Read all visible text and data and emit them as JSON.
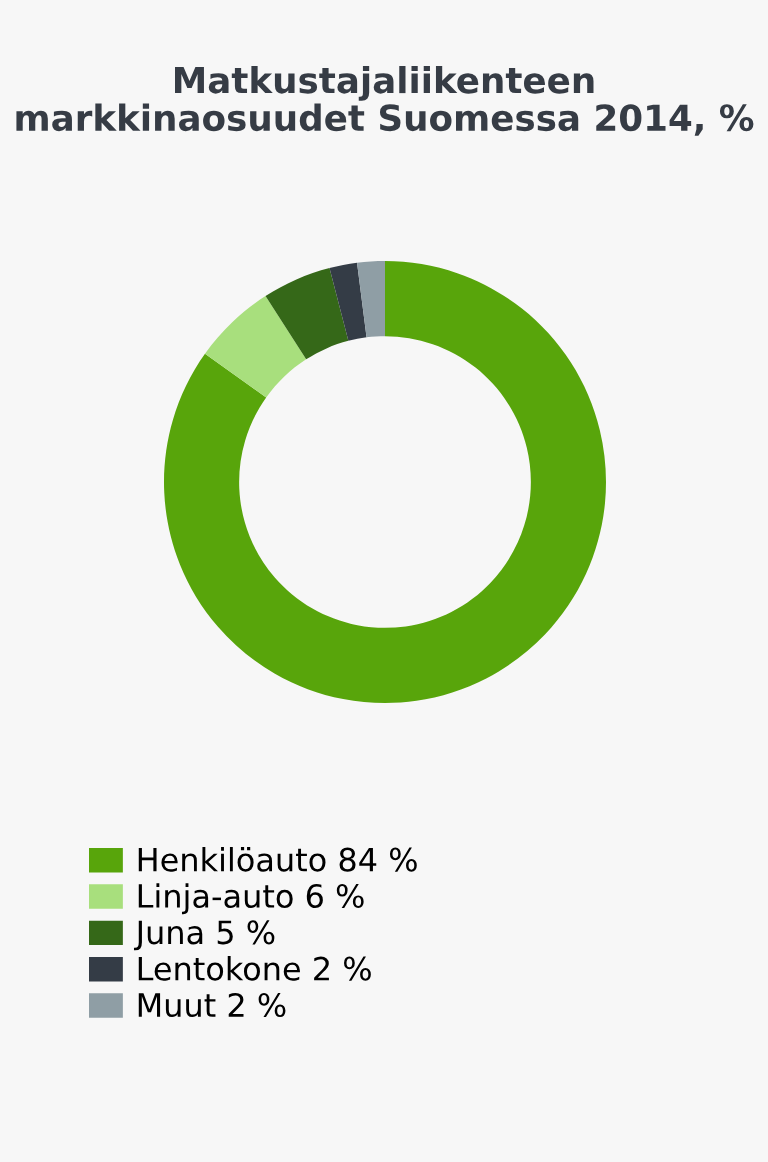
{
  "chart_data": {
    "type": "donut",
    "title": "Matkustajaliikenteen markkinaosuudet Suomessa 2014, %",
    "categories": [
      "Henkilöauto",
      "Linja-auto",
      "Juna",
      "Lentokone",
      "Muut"
    ],
    "values": [
      84,
      6,
      5,
      2,
      2
    ],
    "value_labels": [
      "84 %",
      "6 %",
      "5 %",
      "2 %",
      "2 %"
    ],
    "colors": [
      "#58a50b",
      "#a8df7d",
      "#356818",
      "#343c46",
      "#8f9ea5"
    ],
    "legend": "bottom"
  }
}
